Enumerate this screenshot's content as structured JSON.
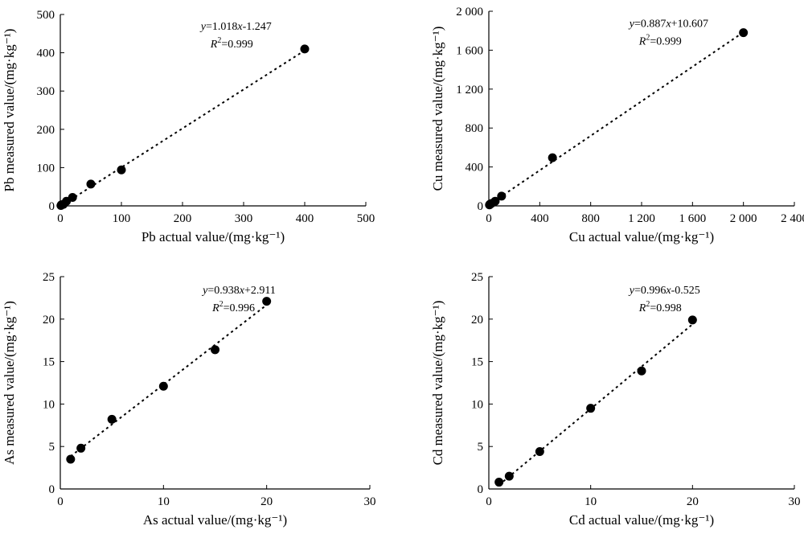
{
  "chart_data": [
    {
      "type": "scatter",
      "title": "",
      "xlabel": "Pb actual value/(mg·kg⁻¹)",
      "ylabel": "Pb measured value/(mg·kg⁻¹)",
      "xlim": [
        0,
        500
      ],
      "ylim": [
        0,
        500
      ],
      "xticks": [
        0,
        100,
        200,
        300,
        400,
        500
      ],
      "yticks": [
        0,
        100,
        200,
        300,
        400,
        500
      ],
      "xtick_labels": [
        "0",
        "100",
        "200",
        "300",
        "400",
        "500"
      ],
      "ytick_labels": [
        "0",
        "100",
        "200",
        "300",
        "400",
        "500"
      ],
      "x": [
        1,
        2,
        5,
        10,
        20,
        50,
        100,
        400
      ],
      "y": [
        1,
        3,
        4,
        12,
        22,
        57,
        94,
        410
      ],
      "fit": {
        "slope": 1.018,
        "intercept": -1.247
      },
      "equation": {
        "y": "y",
        "rhs_pre": "=1.018",
        "x": "x",
        "rhs_post": "-1.247"
      },
      "r2": {
        "R": "R",
        "sup": "2",
        "value": "=0.999"
      },
      "grid": false
    },
    {
      "type": "scatter",
      "title": "",
      "xlabel": "Cu actual value/(mg·kg⁻¹)",
      "ylabel": "Cu measured value/(mg·kg⁻¹)",
      "xlim": [
        0,
        2400
      ],
      "ylim": [
        0,
        2000
      ],
      "xticks": [
        0,
        400,
        800,
        1200,
        1600,
        2000,
        2400
      ],
      "yticks": [
        0,
        400,
        800,
        1200,
        1600,
        2000
      ],
      "xtick_labels": [
        "0",
        "400",
        "800",
        "1 200",
        "1 600",
        "2 000",
        "2 400"
      ],
      "ytick_labels": [
        "0",
        "400",
        "800",
        "1 200",
        "1 600",
        "2 000"
      ],
      "x": [
        5,
        10,
        20,
        50,
        100,
        500,
        2000
      ],
      "y": [
        10,
        18,
        25,
        48,
        100,
        495,
        1780
      ],
      "fit": {
        "slope": 0.887,
        "intercept": 10.607
      },
      "equation": {
        "y": "y",
        "rhs_pre": "=0.887",
        "x": "x",
        "rhs_post": "+10.607"
      },
      "r2": {
        "R": "R",
        "sup": "2",
        "value": "=0.999"
      },
      "grid": false
    },
    {
      "type": "scatter",
      "title": "",
      "xlabel": "As actual value/(mg·kg⁻¹)",
      "ylabel": "As measured value/(mg·kg⁻¹)",
      "xlim": [
        0,
        30
      ],
      "ylim": [
        0,
        25
      ],
      "xticks": [
        0,
        10,
        20,
        30
      ],
      "yticks": [
        0,
        5,
        10,
        15,
        20,
        25
      ],
      "xtick_labels": [
        "0",
        "10",
        "20",
        "30"
      ],
      "ytick_labels": [
        "0",
        "5",
        "10",
        "15",
        "20",
        "25"
      ],
      "x": [
        1,
        2,
        5,
        10,
        15,
        20
      ],
      "y": [
        3.5,
        4.8,
        8.2,
        12.1,
        16.4,
        22.1
      ],
      "fit": {
        "slope": 0.938,
        "intercept": 2.911
      },
      "equation": {
        "y": "y",
        "rhs_pre": "=0.938",
        "x": "x",
        "rhs_post": "+2.911"
      },
      "r2": {
        "R": "R",
        "sup": "2",
        "value": "=0.996"
      },
      "grid": false
    },
    {
      "type": "scatter",
      "title": "",
      "xlabel": "Cd actual value/(mg·kg⁻¹)",
      "ylabel": "Cd measured value/(mg·kg⁻¹)",
      "xlim": [
        0,
        30
      ],
      "ylim": [
        0,
        25
      ],
      "xticks": [
        0,
        10,
        20,
        30
      ],
      "yticks": [
        0,
        5,
        10,
        15,
        20,
        25
      ],
      "xtick_labels": [
        "0",
        "10",
        "20",
        "30"
      ],
      "ytick_labels": [
        "0",
        "5",
        "10",
        "15",
        "20",
        "25"
      ],
      "x": [
        1,
        2,
        5,
        10,
        15,
        20
      ],
      "y": [
        0.8,
        1.5,
        4.4,
        9.5,
        13.9,
        19.9
      ],
      "fit": {
        "slope": 0.996,
        "intercept": -0.525
      },
      "equation": {
        "y": "y",
        "rhs_pre": "=0.996",
        "x": "x",
        "rhs_post": "-0.525"
      },
      "r2": {
        "R": "R",
        "sup": "2",
        "value": "=0.998"
      },
      "grid": false
    }
  ]
}
